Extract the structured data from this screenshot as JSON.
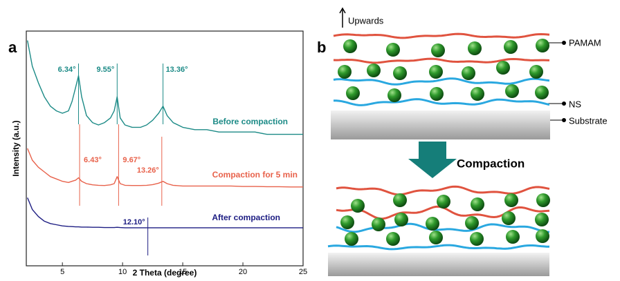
{
  "panel_labels": {
    "a": "a",
    "b": "b"
  },
  "chart_data": {
    "type": "line",
    "x_label": "2 Theta (degree)",
    "y_label": "Intensity (a.u.)",
    "xlim": [
      2,
      25
    ],
    "ylim": [
      0,
      100
    ],
    "xticks": [
      5,
      10,
      15,
      20,
      25
    ],
    "x": [
      2.1,
      2.5,
      3,
      3.5,
      4,
      4.5,
      5,
      5.5,
      5.8,
      6.1,
      6.34,
      6.6,
      7,
      7.5,
      8,
      8.5,
      9,
      9.3,
      9.55,
      9.8,
      10.2,
      10.8,
      11.5,
      12,
      12.5,
      13,
      13.36,
      13.7,
      14.2,
      15,
      16,
      17,
      18,
      19,
      20,
      21,
      22,
      23,
      24,
      25
    ],
    "series": [
      {
        "name": "Before compaction",
        "color": "#1b8a86",
        "values": [
          96,
          85,
          78,
          72,
          68,
          66,
          65,
          66,
          70,
          76,
          81,
          72,
          64,
          61,
          60,
          61,
          63,
          66,
          72,
          63,
          60,
          59,
          59,
          60,
          62,
          65,
          68,
          64,
          61,
          59,
          58,
          58,
          57,
          57,
          57,
          57,
          56,
          56,
          56,
          56
        ],
        "peaks": [
          {
            "value": 6.34,
            "label": "6.34°"
          },
          {
            "value": 9.55,
            "label": "9.55°"
          },
          {
            "value": 13.36,
            "label": "13.36°"
          }
        ]
      },
      {
        "name": "Compaction for 5 min",
        "color": "#e8614a",
        "values": [
          50,
          45,
          42,
          40,
          38,
          37,
          36,
          35.5,
          36,
          36.5,
          37.5,
          36,
          35,
          34.5,
          34.3,
          34.2,
          34.5,
          35,
          38,
          35,
          34.3,
          34.2,
          34.2,
          34.3,
          34.6,
          35.2,
          36,
          35,
          34.3,
          34,
          34,
          34,
          34,
          34,
          33.8,
          33.8,
          33.7,
          33.7,
          33.6,
          33.6
        ],
        "peaks": [
          {
            "value": 6.43,
            "label": "6.43°"
          },
          {
            "value": 9.67,
            "label": "9.67°"
          },
          {
            "value": 13.26,
            "label": "13.26°"
          }
        ]
      },
      {
        "name": "After compaction",
        "color": "#1c1c82",
        "values": [
          29,
          24,
          21,
          19,
          18,
          17.5,
          17,
          16.8,
          16.7,
          16.6,
          16.6,
          16.5,
          16.5,
          16.4,
          16.4,
          16.3,
          16.3,
          16.3,
          16.4,
          16.3,
          16.2,
          16.2,
          16.2,
          16.2,
          16.2,
          16.2,
          16.2,
          16.2,
          16.2,
          16.2,
          16.2,
          16.2,
          16.2,
          16.2,
          16.2,
          16.2,
          16.2,
          16.2,
          16.2,
          16.2
        ],
        "peaks": [
          {
            "value": 12.1,
            "label": "12.10°"
          }
        ]
      }
    ]
  },
  "diagram": {
    "upwards": "Upwards",
    "pamam": "PAMAM",
    "ns": "NS",
    "substrate": "Substrate",
    "compaction": "Compaction"
  }
}
